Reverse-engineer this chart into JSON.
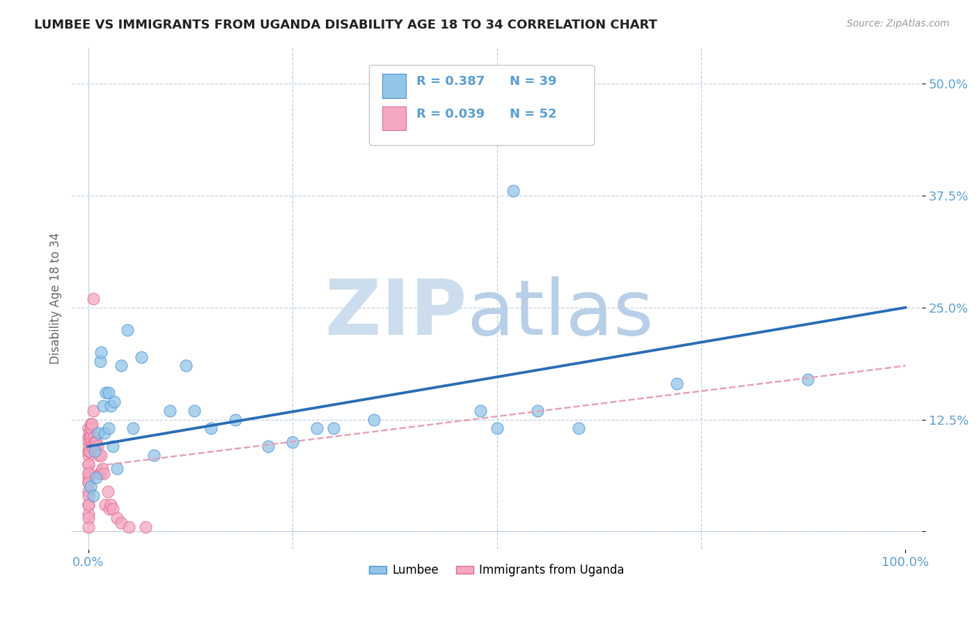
{
  "title": "LUMBEE VS IMMIGRANTS FROM UGANDA DISABILITY AGE 18 TO 34 CORRELATION CHART",
  "source": "Source: ZipAtlas.com",
  "ylabel": "Disability Age 18 to 34",
  "xlim": [
    -0.02,
    1.02
  ],
  "ylim": [
    -0.02,
    0.54
  ],
  "yticks": [
    0.0,
    0.125,
    0.25,
    0.375,
    0.5
  ],
  "yticklabels": [
    "",
    "12.5%",
    "25.0%",
    "37.5%",
    "50.0%"
  ],
  "lumbee_R": "0.387",
  "lumbee_N": "39",
  "uganda_R": "0.039",
  "uganda_N": "52",
  "lumbee_color": "#92c5e8",
  "uganda_color": "#f4a8c0",
  "lumbee_edge_color": "#4a90d9",
  "uganda_edge_color": "#e06890",
  "lumbee_line_color": "#2a6db5",
  "uganda_line_color": "#e8a0b5",
  "lumbee_x": [
    0.003,
    0.006,
    0.008,
    0.01,
    0.012,
    0.015,
    0.016,
    0.018,
    0.02,
    0.022,
    0.025,
    0.025,
    0.028,
    0.03,
    0.032,
    0.035,
    0.04,
    0.048,
    0.055,
    0.065,
    0.08,
    0.1,
    0.12,
    0.13,
    0.15,
    0.18,
    0.22,
    0.25,
    0.28,
    0.3,
    0.35,
    0.48,
    0.5,
    0.52,
    0.55,
    0.6,
    0.72,
    0.88,
    0.52
  ],
  "lumbee_y": [
    0.05,
    0.04,
    0.09,
    0.06,
    0.11,
    0.19,
    0.2,
    0.14,
    0.11,
    0.155,
    0.115,
    0.155,
    0.14,
    0.095,
    0.145,
    0.07,
    0.185,
    0.225,
    0.115,
    0.195,
    0.085,
    0.135,
    0.185,
    0.135,
    0.115,
    0.125,
    0.095,
    0.1,
    0.115,
    0.115,
    0.125,
    0.135,
    0.115,
    0.495,
    0.135,
    0.115,
    0.165,
    0.17,
    0.38
  ],
  "uganda_x": [
    0.0,
    0.0,
    0.0,
    0.0,
    0.0,
    0.0,
    0.0,
    0.0,
    0.0,
    0.0,
    0.0,
    0.0,
    0.0,
    0.0,
    0.0,
    0.0,
    0.0,
    0.0,
    0.0,
    0.0,
    0.001,
    0.001,
    0.002,
    0.002,
    0.003,
    0.003,
    0.004,
    0.004,
    0.005,
    0.005,
    0.006,
    0.006,
    0.007,
    0.008,
    0.009,
    0.01,
    0.011,
    0.013,
    0.014,
    0.015,
    0.016,
    0.017,
    0.019,
    0.021,
    0.024,
    0.026,
    0.028,
    0.03,
    0.035,
    0.04,
    0.05,
    0.07
  ],
  "uganda_y": [
    0.09,
    0.085,
    0.075,
    0.065,
    0.06,
    0.055,
    0.045,
    0.04,
    0.03,
    0.02,
    0.115,
    0.105,
    0.1,
    0.09,
    0.075,
    0.065,
    0.055,
    0.03,
    0.015,
    0.005,
    0.11,
    0.095,
    0.105,
    0.09,
    0.12,
    0.105,
    0.115,
    0.1,
    0.12,
    0.095,
    0.26,
    0.135,
    0.105,
    0.1,
    0.095,
    0.1,
    0.095,
    0.085,
    0.065,
    0.065,
    0.085,
    0.07,
    0.065,
    0.03,
    0.045,
    0.025,
    0.03,
    0.025,
    0.015,
    0.01,
    0.005,
    0.005
  ],
  "lumbee_line_x0": 0.0,
  "lumbee_line_y0": 0.095,
  "lumbee_line_x1": 1.0,
  "lumbee_line_y1": 0.25,
  "uganda_line_x0": 0.0,
  "uganda_line_y0": 0.072,
  "uganda_line_x1": 1.0,
  "uganda_line_y1": 0.185,
  "background_color": "#ffffff",
  "grid_color": "#c0d0e0",
  "title_color": "#222222",
  "axis_label_color": "#5a9fd4",
  "watermark_zip_color": "#ccdded",
  "watermark_atlas_color": "#b8cfe8"
}
